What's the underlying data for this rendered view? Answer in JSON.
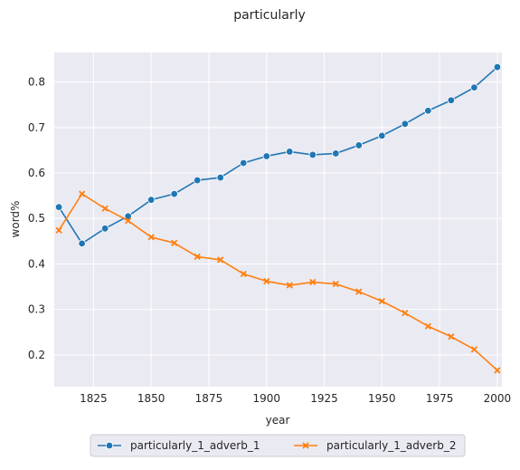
{
  "chart_data": {
    "type": "line",
    "title": "particularly",
    "xlabel": "year",
    "ylabel": "word%",
    "xlim": [
      1808,
      2002
    ],
    "ylim": [
      0.13,
      0.865
    ],
    "xticks": [
      1825,
      1850,
      1875,
      1900,
      1925,
      1950,
      1975,
      2000
    ],
    "yticks": [
      0.2,
      0.3,
      0.4,
      0.5,
      0.6,
      0.7,
      0.8
    ],
    "grid": true,
    "legend_position": "bottom-center",
    "x": [
      1810,
      1820,
      1830,
      1840,
      1850,
      1860,
      1870,
      1880,
      1890,
      1900,
      1910,
      1920,
      1930,
      1940,
      1950,
      1960,
      1970,
      1980,
      1990,
      2000
    ],
    "series": [
      {
        "name": "particularly_1_adverb_1",
        "color": "#1f77b4",
        "marker": "circle",
        "values": [
          0.525,
          0.445,
          0.478,
          0.505,
          0.541,
          0.554,
          0.584,
          0.59,
          0.622,
          0.637,
          0.647,
          0.64,
          0.643,
          0.661,
          0.682,
          0.708,
          0.737,
          0.76,
          0.788,
          0.833
        ]
      },
      {
        "name": "particularly_1_adverb_2",
        "color": "#ff7f0e",
        "marker": "x",
        "values": [
          0.474,
          0.554,
          0.522,
          0.495,
          0.459,
          0.446,
          0.416,
          0.409,
          0.378,
          0.362,
          0.353,
          0.36,
          0.356,
          0.339,
          0.318,
          0.292,
          0.263,
          0.24,
          0.212,
          0.166
        ]
      }
    ]
  }
}
